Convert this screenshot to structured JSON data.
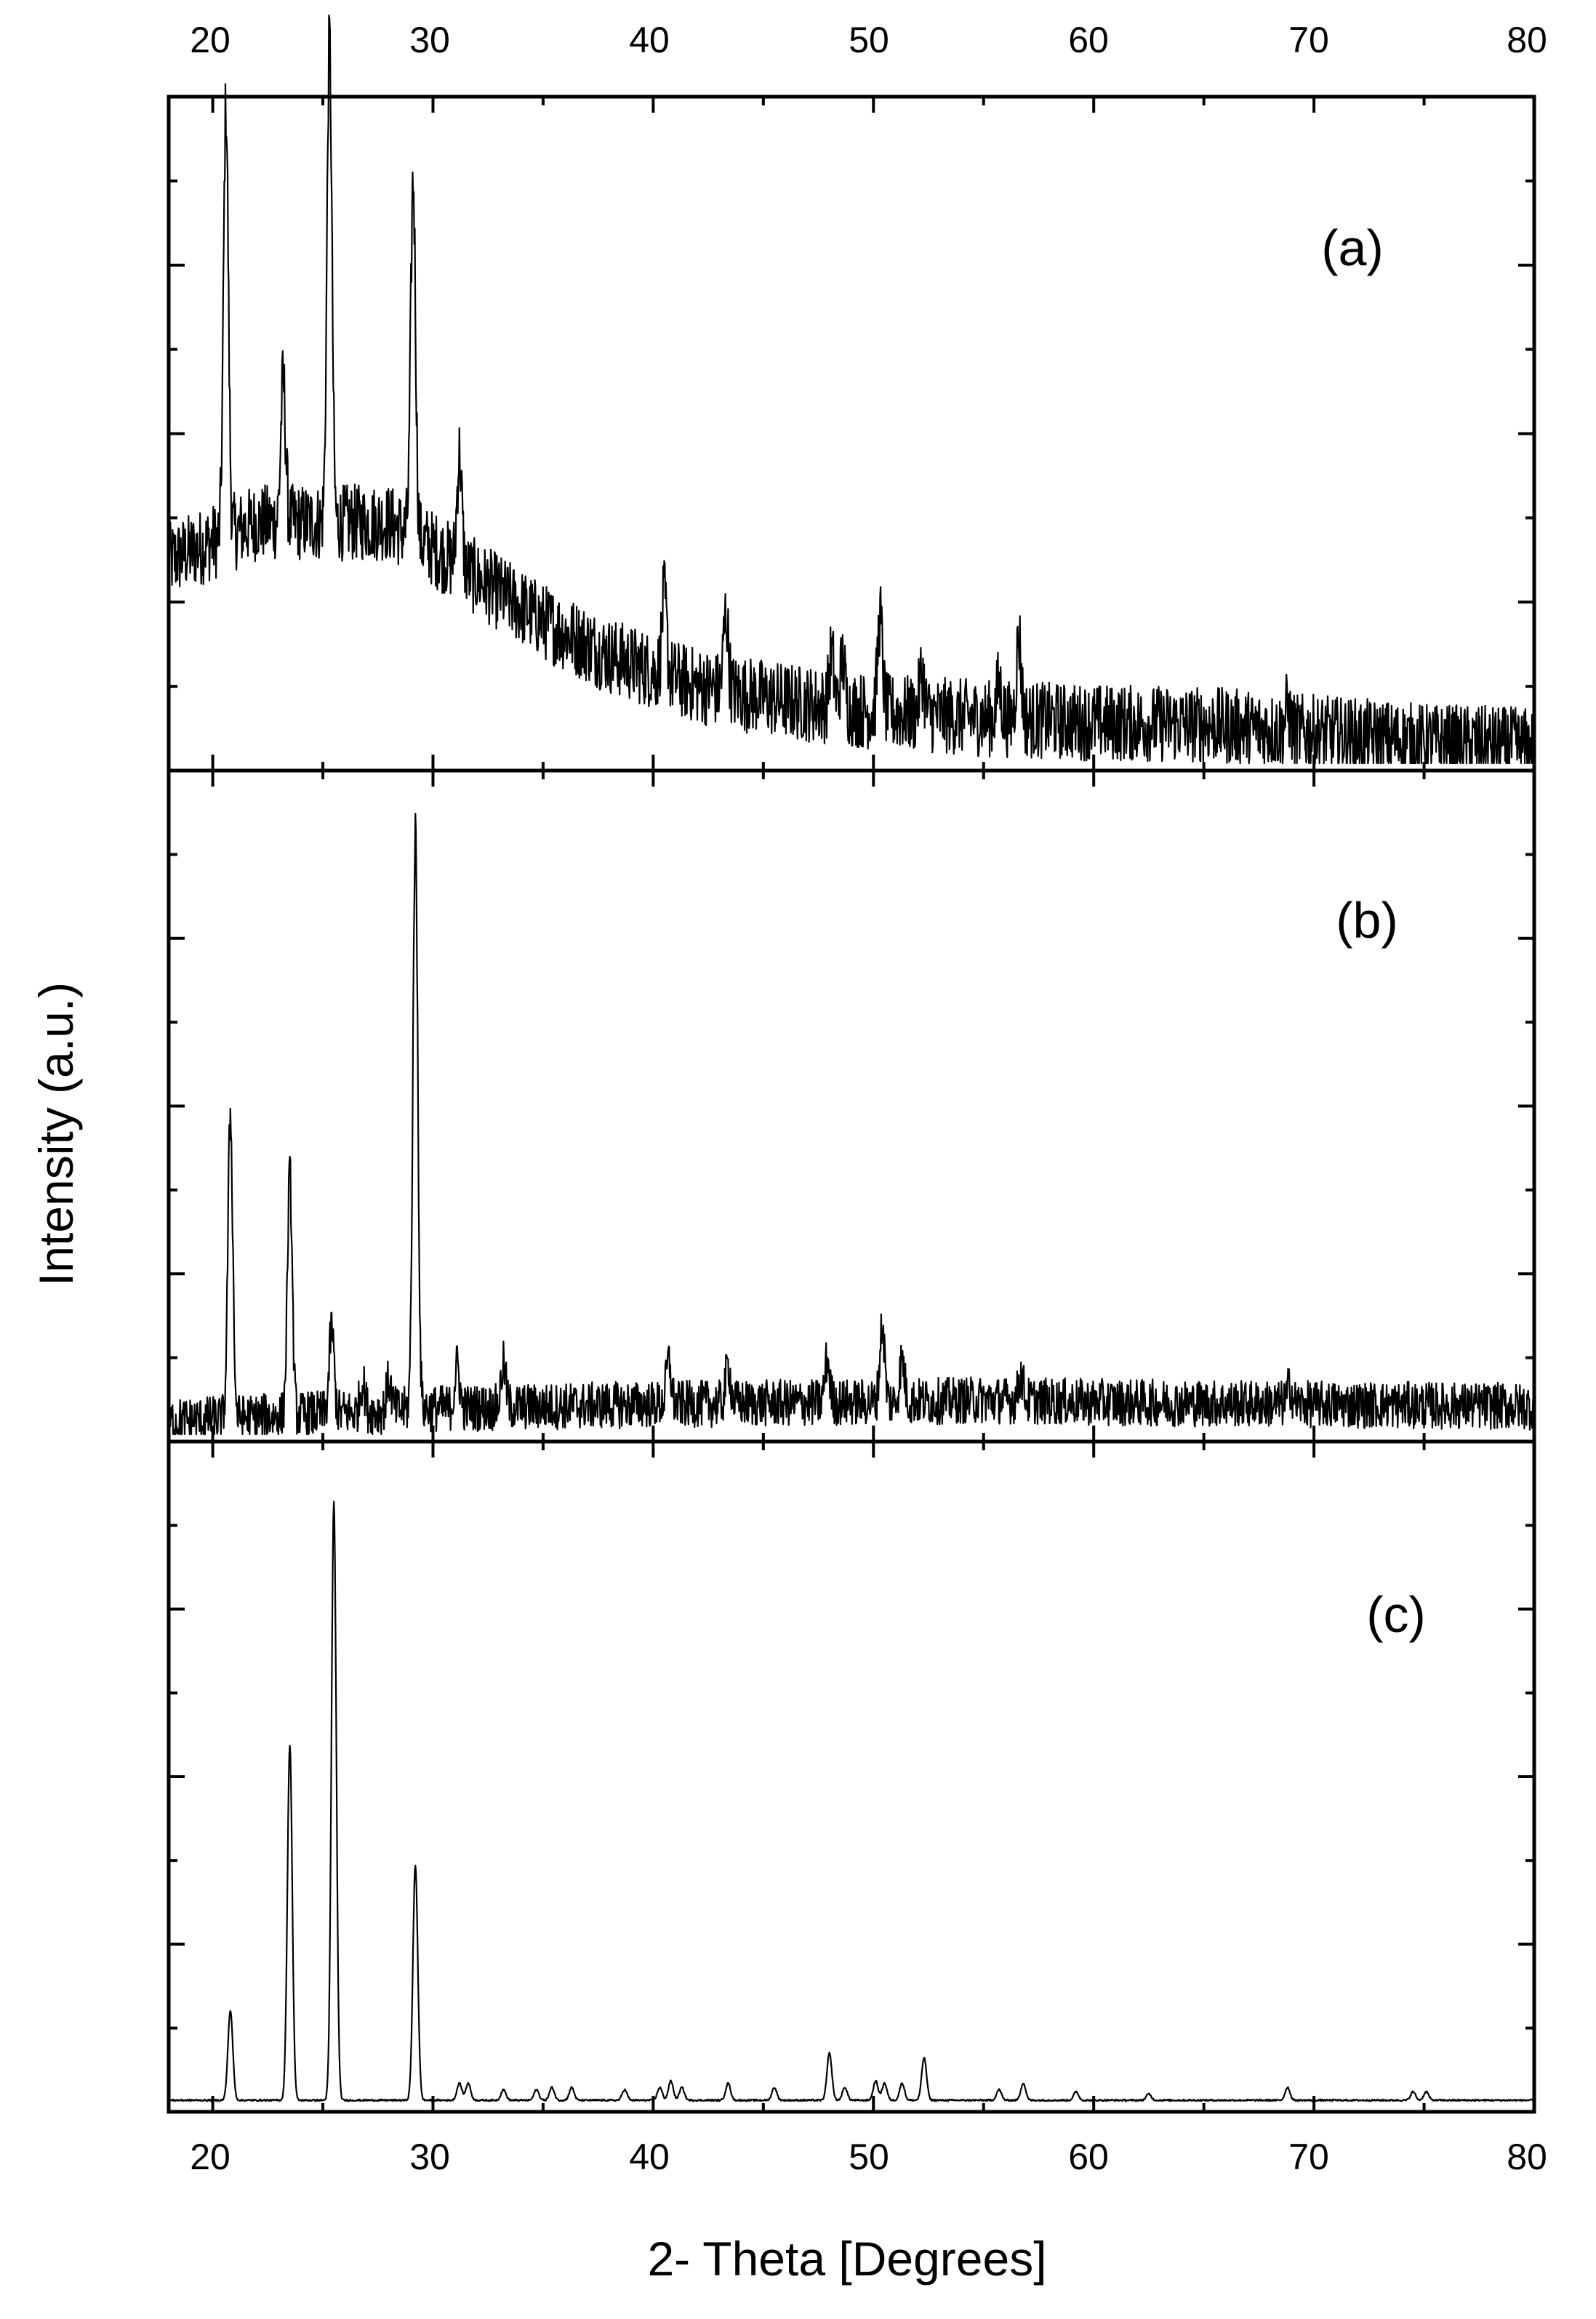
{
  "chart_data": {
    "type": "line",
    "xlabel": "2- Theta [Degrees]",
    "ylabel": "Intensity (a.u.)",
    "xlim": [
      18,
      80
    ],
    "xticks": [
      20,
      30,
      40,
      50,
      60,
      70,
      80
    ],
    "panels": [
      {
        "label": "(a)",
        "peaks": [
          [
            20.6,
            10.0
          ],
          [
            23.2,
            3.3
          ],
          [
            25.3,
            11.2
          ],
          [
            29.1,
            8.3
          ],
          [
            31.2,
            2.6
          ],
          [
            40.5,
            1.8
          ],
          [
            43.3,
            1.8
          ],
          [
            48.1,
            1.2
          ],
          [
            48.6,
            1.1
          ],
          [
            50.3,
            2.2
          ],
          [
            52.2,
            1.0
          ],
          [
            55.7,
            0.8
          ],
          [
            56.6,
            1.9
          ],
          [
            68.8,
            0.5
          ]
        ],
        "baseline": [
          [
            18,
            4.7
          ],
          [
            22,
            5.6
          ],
          [
            25,
            5.6
          ],
          [
            28,
            5.6
          ],
          [
            30,
            5.0
          ],
          [
            32,
            4.3
          ],
          [
            35,
            3.3
          ],
          [
            38,
            2.5
          ],
          [
            42,
            1.8
          ],
          [
            46,
            1.45
          ],
          [
            50,
            1.2
          ],
          [
            55,
            1.05
          ],
          [
            60,
            0.95
          ],
          [
            65,
            0.9
          ],
          [
            70,
            0.7
          ],
          [
            75,
            0.5
          ],
          [
            80,
            0.4
          ]
        ],
        "noise": 0.9
      },
      {
        "label": "(b)",
        "peaks": [
          [
            20.8,
            7.1
          ],
          [
            23.5,
            5.6
          ],
          [
            25.4,
            2.0
          ],
          [
            26.8,
            0.7
          ],
          [
            28.0,
            0.7
          ],
          [
            29.2,
            13.5
          ],
          [
            31.1,
            1.0
          ],
          [
            33.2,
            1.0
          ],
          [
            40.7,
            1.0
          ],
          [
            43.4,
            0.9
          ],
          [
            47.9,
            1.0
          ],
          [
            50.4,
            1.8
          ],
          [
            51.3,
            1.0
          ],
          [
            56.7,
            0.6
          ],
          [
            68.9,
            0.4
          ]
        ],
        "baseline": [
          [
            18,
            0.3
          ],
          [
            30,
            0.6
          ],
          [
            40,
            0.7
          ],
          [
            50,
            0.75
          ],
          [
            55,
            0.8
          ],
          [
            60,
            0.75
          ],
          [
            70,
            0.7
          ],
          [
            80,
            0.65
          ]
        ],
        "noise": 0.55
      },
      {
        "label": "(c)",
        "peaks": [
          [
            20.8,
            2.1
          ],
          [
            23.5,
            8.3
          ],
          [
            25.5,
            14.0
          ],
          [
            29.2,
            5.5
          ],
          [
            31.2,
            0.4
          ],
          [
            31.6,
            0.4
          ],
          [
            33.2,
            0.25
          ],
          [
            34.7,
            0.25
          ],
          [
            35.4,
            0.3
          ],
          [
            36.3,
            0.3
          ],
          [
            38.7,
            0.25
          ],
          [
            40.3,
            0.3
          ],
          [
            40.8,
            0.45
          ],
          [
            41.3,
            0.3
          ],
          [
            43.4,
            0.4
          ],
          [
            45.5,
            0.3
          ],
          [
            48.0,
            1.1
          ],
          [
            48.7,
            0.3
          ],
          [
            50.1,
            0.45
          ],
          [
            50.5,
            0.4
          ],
          [
            51.3,
            0.4
          ],
          [
            52.3,
            1.0
          ],
          [
            55.7,
            0.25
          ],
          [
            56.8,
            0.4
          ],
          [
            59.2,
            0.2
          ],
          [
            62.5,
            0.15
          ],
          [
            68.8,
            0.3
          ],
          [
            74.5,
            0.2
          ],
          [
            75.1,
            0.2
          ]
        ],
        "baseline": [
          [
            18,
            0.1
          ],
          [
            80,
            0.1
          ]
        ],
        "noise": 0.02
      }
    ]
  }
}
